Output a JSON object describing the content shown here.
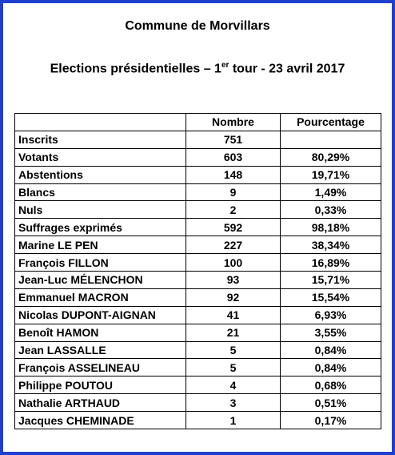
{
  "header": {
    "title": "Commune de Morvillars",
    "subtitle": {
      "before": "Elections présidentielles – 1",
      "sup": "er",
      "after": " tour - 23 avril 2017"
    }
  },
  "table": {
    "columns": [
      "Nombre",
      "Pourcentage"
    ],
    "rows": [
      [
        "Inscrits",
        "751"
      ],
      [
        "Votants",
        "603",
        "80,29%"
      ],
      [
        "Abstentions",
        "148",
        "19,71%"
      ],
      [
        "Blancs",
        "9",
        "1,49%"
      ],
      [
        "Nuls",
        "2",
        "0,33%"
      ],
      [
        "Suffrages exprimés",
        "592",
        "98,18%"
      ],
      [
        "Marine LE PEN",
        "227",
        "38,34%"
      ],
      [
        "François FILLON",
        "100",
        "16,89%"
      ],
      [
        "Jean-Luc MÉLENCHON",
        "93",
        "15,71%"
      ],
      [
        "Emmanuel MACRON",
        "92",
        "15,54%"
      ],
      [
        "Nicolas DUPONT-AIGNAN",
        "41",
        "6,93%"
      ],
      [
        "Benoît HAMON",
        "21",
        "3,55%"
      ],
      [
        "Jean LASSALLE",
        "5",
        "0,84%"
      ],
      [
        "François ASSELINEAU",
        "5",
        "0,84%"
      ],
      [
        "Philippe POUTOU",
        "4",
        "0,68%"
      ],
      [
        "Nathalie ARTHAUD",
        "3",
        "0,51%"
      ],
      [
        "Jacques CHEMINADE",
        "1",
        "0,17%"
      ]
    ]
  }
}
